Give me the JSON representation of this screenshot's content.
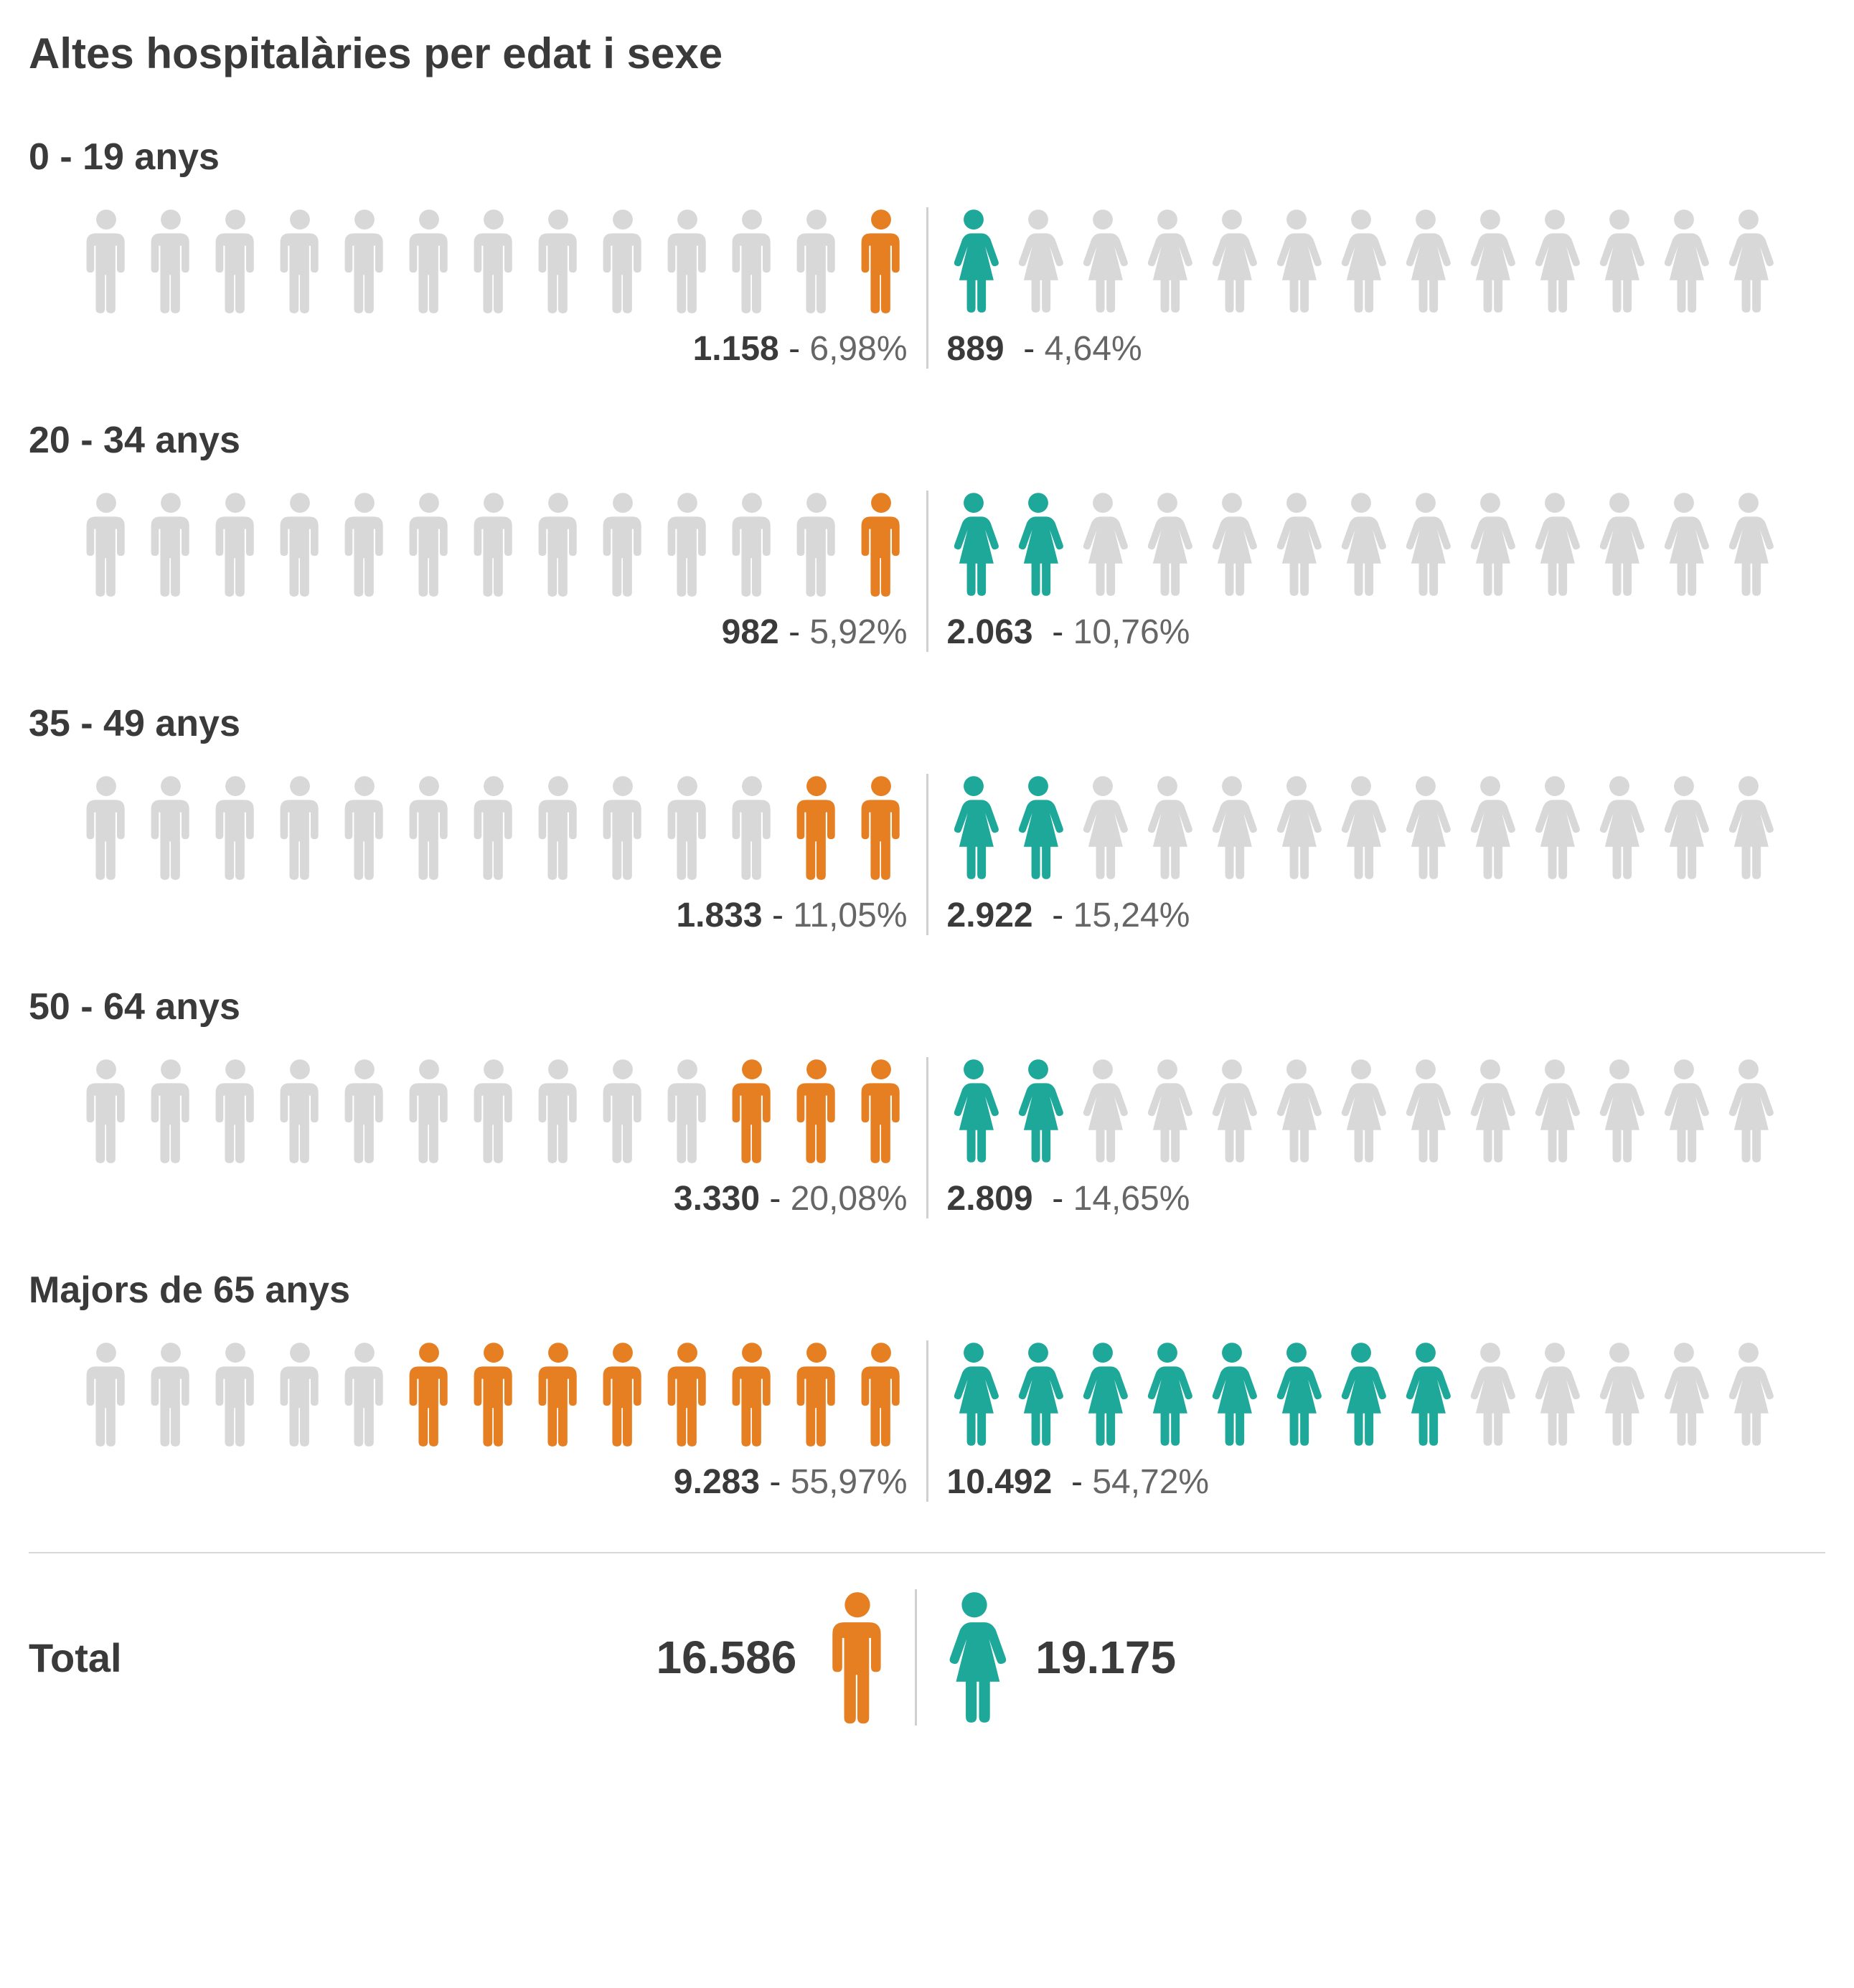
{
  "title": "Altes hospitalàries per edat i sexe",
  "colors": {
    "male_active": "#e67e22",
    "female_active": "#1da89a",
    "inactive": "#d8d8d8",
    "text_primary": "#3a3a3a",
    "text_secondary": "#666666",
    "divider": "#d0d0d0",
    "background": "#ffffff"
  },
  "icon_count_per_side": 13,
  "icon_size": {
    "width": 86,
    "height": 150
  },
  "total_icon_size": {
    "width": 110,
    "height": 190
  },
  "font_sizes": {
    "title": 60,
    "age_label": 52,
    "stat": 48,
    "total_label": 56,
    "total_value": 64
  },
  "groups": [
    {
      "label": "0 - 19 anys",
      "male": {
        "count": "1.158",
        "pct": "6,98%",
        "filled": 1
      },
      "female": {
        "count": "889",
        "pct": "4,64%",
        "filled": 1
      }
    },
    {
      "label": "20 - 34 anys",
      "male": {
        "count": "982",
        "pct": "5,92%",
        "filled": 1
      },
      "female": {
        "count": "2.063",
        "pct": "10,76%",
        "filled": 2
      }
    },
    {
      "label": "35 - 49 anys",
      "male": {
        "count": "1.833",
        "pct": "11,05%",
        "filled": 2
      },
      "female": {
        "count": "2.922",
        "pct": "15,24%",
        "filled": 2
      }
    },
    {
      "label": "50 - 64 anys",
      "male": {
        "count": "3.330",
        "pct": "20,08%",
        "filled": 3
      },
      "female": {
        "count": "2.809",
        "pct": "14,65%",
        "filled": 2
      }
    },
    {
      "label": "Majors de 65 anys",
      "male": {
        "count": "9.283",
        "pct": "55,97%",
        "filled": 8
      },
      "female": {
        "count": "10.492",
        "pct": "54,72%",
        "filled": 8
      }
    }
  ],
  "total": {
    "label": "Total",
    "male": "16.586",
    "female": "19.175"
  }
}
